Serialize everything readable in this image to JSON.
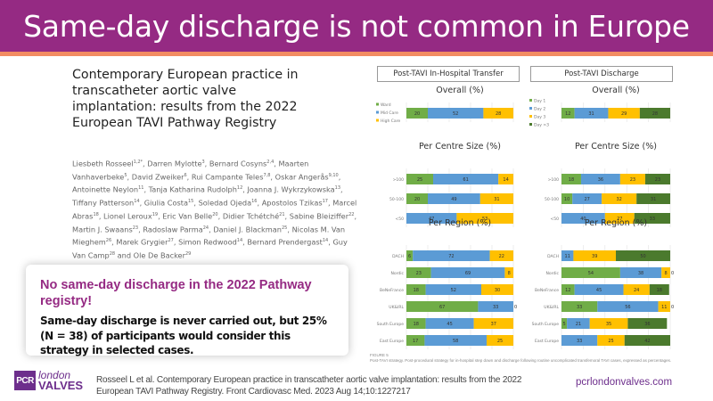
{
  "slide": {
    "title": "Same-day discharge is not common in Europe",
    "colors": {
      "title_bg": "#952a83",
      "accent": "#f28c62",
      "brand": "#6d2e8c"
    }
  },
  "paper": {
    "title": "Contemporary European practice in transcatheter aortic valve implantation: results from the 2022 European TAVI Pathway Registry",
    "authors": [
      {
        "name": "Liesbeth Rosseel",
        "sup": "1,2*"
      },
      {
        "name": "Darren Mylotte",
        "sup": "3"
      },
      {
        "name": "Bernard Cosyns",
        "sup": "2,4"
      },
      {
        "name": "Maarten Vanhaverbeke",
        "sup": "5"
      },
      {
        "name": "David Zweiker",
        "sup": "6"
      },
      {
        "name": "Rui Campante Teles",
        "sup": "7,8"
      },
      {
        "name": "Oskar Angerås",
        "sup": "9,10"
      },
      {
        "name": "Antoinette Neylon",
        "sup": "11"
      },
      {
        "name": "Tanja Katharina Rudolph",
        "sup": "12"
      },
      {
        "name": "Joanna J. Wykrzykowska",
        "sup": "13"
      },
      {
        "name": "Tiffany Patterson",
        "sup": "14"
      },
      {
        "name": "Giulia Costa",
        "sup": "15"
      },
      {
        "name": "Soledad Ojeda",
        "sup": "16"
      },
      {
        "name": "Apostolos Tzikas",
        "sup": "17"
      },
      {
        "name": "Marcel Abras",
        "sup": "18"
      },
      {
        "name": "Lionel Leroux",
        "sup": "19"
      },
      {
        "name": "Eric Van Belle",
        "sup": "20"
      },
      {
        "name": "Didier Tchétché",
        "sup": "21"
      },
      {
        "name": "Sabine Bleiziffer",
        "sup": "22"
      },
      {
        "name": "Martin J. Swaans",
        "sup": "23"
      },
      {
        "name": "Radoslaw Parma",
        "sup": "24"
      },
      {
        "name": "Daniel J. Blackman",
        "sup": "25"
      },
      {
        "name": "Nicolas M. Van Mieghem",
        "sup": "26"
      },
      {
        "name": "Marek Grygier",
        "sup": "27"
      },
      {
        "name": "Simon Redwood",
        "sup": "14"
      },
      {
        "name": "Bernard Prendergast",
        "sup": "14"
      },
      {
        "name": "Guy Van Camp",
        "sup": "28"
      },
      {
        "name": "Ole De Backer",
        "sup": "29"
      }
    ]
  },
  "callout": {
    "heading": "No same-day discharge in the 2022 Pathway registry!",
    "body": "Same-day discharge is never carried out, but 25% (N = 38) of participants would consider this strategy in selected cases."
  },
  "footer": {
    "logo": {
      "pcr": "PCR",
      "london": "london",
      "valves": "VALVES"
    },
    "citation": "Rosseel L et al. Contemporary European practice in transcatheter aortic valve implantation: results from the 2022 European TAVI Pathway Registry. Front Cardiovasc Med. 2023 Aug 14;10:1227217",
    "url": "pcrlondonvalves.com",
    "figure_caption_label": "FIGURE 5",
    "figure_caption": "Post-TAVI strategy. Post-procedural strategy for in-hospital step down and discharge following routine uncomplicated transfemoral TAVI cases, expressed as percentages."
  },
  "chart_data": [
    {
      "id": "transfer",
      "type": "bar",
      "orientation": "horizontal-stacked-100",
      "panel_title": "Post-TAVI In-Hospital Transfer",
      "series_names": [
        "Ward",
        "Mid Care",
        "High Care"
      ],
      "colors": [
        "#70ad47",
        "#5b9bd5",
        "#ffc000"
      ],
      "xlim": [
        0,
        100
      ],
      "grid": true,
      "legend": "left",
      "subcharts": [
        {
          "title": "Overall (%)",
          "categories": [
            "Overall"
          ],
          "values": [
            [
              20,
              52,
              28
            ]
          ]
        },
        {
          "title": "Per Centre Size (%)",
          "categories": [
            ">100",
            "50-100",
            "<50"
          ],
          "values": [
            [
              25,
              61,
              14
            ],
            [
              20,
              49,
              31
            ],
            [
              0,
              47,
              53
            ]
          ]
        },
        {
          "title": "Per Region (%)",
          "categories": [
            "DACH",
            "Nordic",
            "BeNeFrance",
            "UK&IRL",
            "South Europe",
            "East Europe"
          ],
          "values": [
            [
              6,
              72,
              22
            ],
            [
              23,
              69,
              8
            ],
            [
              18,
              52,
              30
            ],
            [
              67,
              33,
              0
            ],
            [
              18,
              45,
              37
            ],
            [
              17,
              58,
              25
            ]
          ]
        }
      ]
    },
    {
      "id": "discharge",
      "type": "bar",
      "orientation": "horizontal-stacked-100",
      "panel_title": "Post-TAVI Discharge",
      "series_names": [
        "Day 1",
        "Day 2",
        "Day 3",
        "Day >3"
      ],
      "colors": [
        "#70ad47",
        "#5b9bd5",
        "#ffc000",
        "#4b7a2d"
      ],
      "xlim": [
        0,
        100
      ],
      "grid": true,
      "legend": "left",
      "subcharts": [
        {
          "title": "Overall (%)",
          "categories": [
            "Overall"
          ],
          "values": [
            [
              12,
              31,
              29,
              28
            ]
          ]
        },
        {
          "title": "Per Centre Size (%)",
          "categories": [
            ">100",
            "50-100",
            "<50"
          ],
          "values": [
            [
              18,
              36,
              23,
              23
            ],
            [
              10,
              27,
              32,
              31
            ],
            [
              0,
              40,
              27,
              33
            ]
          ]
        },
        {
          "title": "Per Region (%)",
          "categories": [
            "DACH",
            "Nordic",
            "BeNeFrance",
            "UK&IRL",
            "South Europe",
            "East Europe"
          ],
          "values": [
            [
              0,
              11,
              39,
              50
            ],
            [
              54,
              38,
              8,
              0
            ],
            [
              12,
              45,
              24,
              18
            ],
            [
              33,
              56,
              11,
              0
            ],
            [
              5,
              21,
              35,
              36
            ],
            [
              0,
              33,
              25,
              42
            ]
          ]
        }
      ]
    }
  ]
}
